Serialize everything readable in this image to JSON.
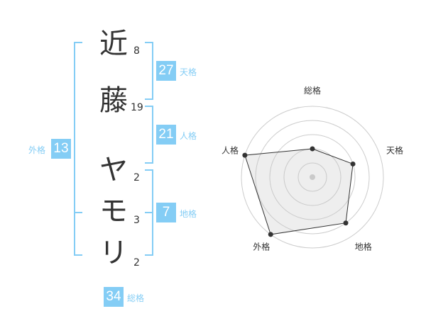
{
  "name": [
    {
      "char": "近",
      "strokes": "8"
    },
    {
      "char": "藤",
      "strokes": "19"
    },
    {
      "char": "ヤ",
      "strokes": "2"
    },
    {
      "char": "モ",
      "strokes": "3"
    },
    {
      "char": "リ",
      "strokes": "2"
    }
  ],
  "results": {
    "tenkaku": {
      "label": "天格",
      "value": "27"
    },
    "jinkaku": {
      "label": "人格",
      "value": "21"
    },
    "chikaku": {
      "label": "地格",
      "value": "7"
    },
    "gaikaku": {
      "label": "外格",
      "value": "13"
    },
    "soukaku": {
      "label": "総格",
      "value": "34"
    }
  },
  "accent_color": "#84cdf5",
  "chart_data": {
    "type": "radar",
    "axes": [
      "総格",
      "天格",
      "地格",
      "外格",
      "人格"
    ],
    "values": [
      2,
      3,
      4,
      5,
      5
    ],
    "range": [
      0,
      5
    ],
    "rings": 5
  }
}
